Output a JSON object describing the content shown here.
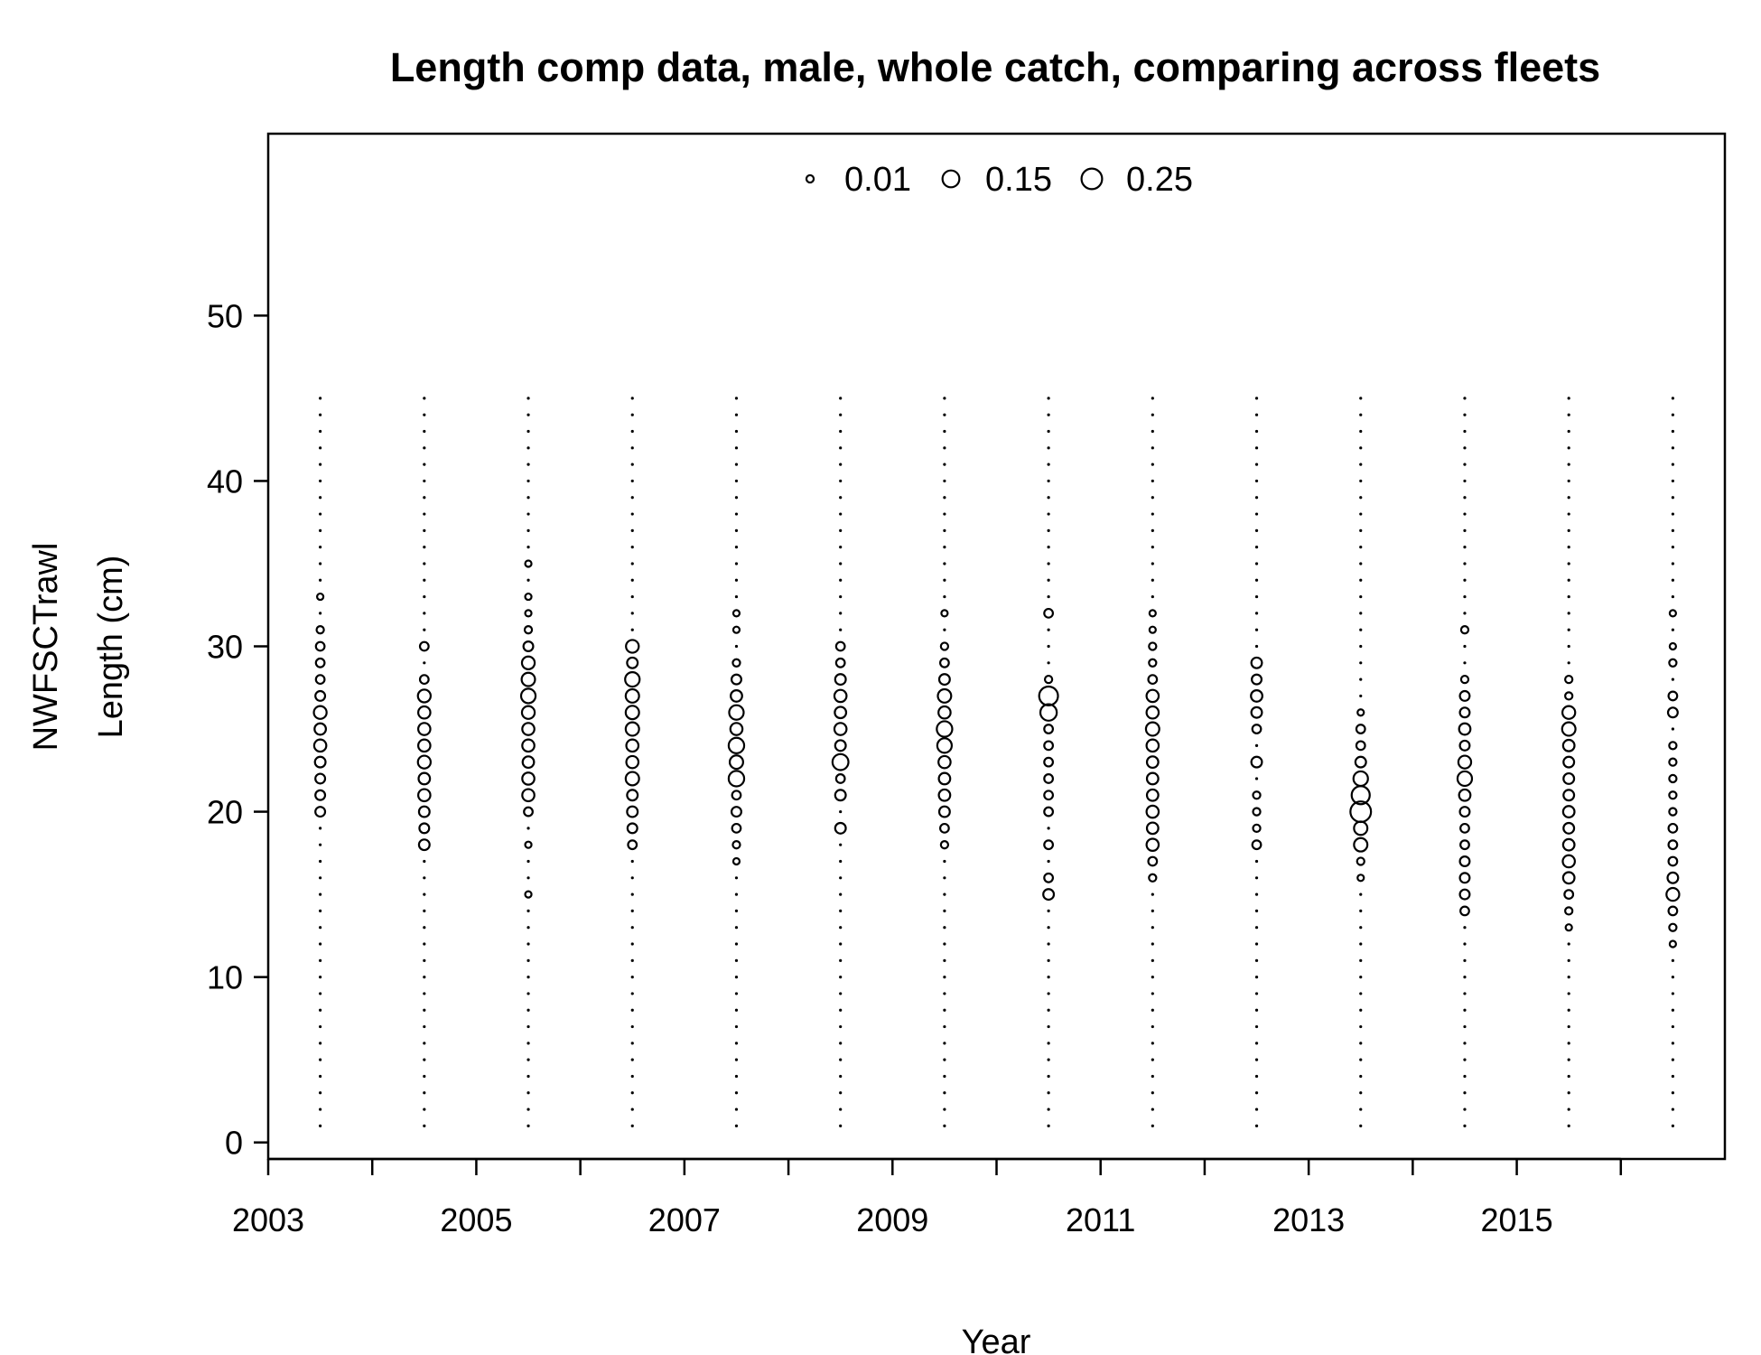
{
  "chart_data": {
    "type": "bubble",
    "title": "Length comp data, male, whole catch, comparing across fleets",
    "xlabel": "Year",
    "ylabel_fleet": "NWFSCTrawl",
    "ylabel": "Length (cm)",
    "xlim": [
      2003,
      2017
    ],
    "ylim": [
      -1,
      61
    ],
    "x_ticks": [
      2003,
      2004,
      2005,
      2006,
      2007,
      2008,
      2009,
      2010,
      2011,
      2012,
      2013,
      2014,
      2015,
      2016
    ],
    "x_tick_labels": [
      "2003",
      "2005",
      "2007",
      "2009",
      "2011",
      "2013",
      "2015"
    ],
    "y_ticks": [
      0,
      10,
      20,
      30,
      40,
      50
    ],
    "legend": {
      "placement": "top-center",
      "entries": [
        {
          "label": "0.01",
          "value": 0.01
        },
        {
          "label": "0.15",
          "value": 0.15
        },
        {
          "label": "0.25",
          "value": 0.25
        }
      ]
    },
    "length_bins": [
      1,
      45
    ],
    "years": [
      {
        "year": 2003.5,
        "props": {
          "20": 0.03,
          "21": 0.03,
          "22": 0.03,
          "23": 0.04,
          "24": 0.06,
          "25": 0.05,
          "26": 0.07,
          "27": 0.03,
          "28": 0.02,
          "29": 0.02,
          "30": 0.02,
          "31": 0.01,
          "33": 0.005
        }
      },
      {
        "year": 2004.5,
        "props": {
          "18": 0.04,
          "19": 0.03,
          "20": 0.04,
          "21": 0.06,
          "22": 0.05,
          "23": 0.07,
          "24": 0.06,
          "25": 0.06,
          "26": 0.06,
          "27": 0.07,
          "28": 0.02,
          "30": 0.02
        }
      },
      {
        "year": 2005.5,
        "props": {
          "15": 0.005,
          "18": 0.005,
          "20": 0.02,
          "21": 0.06,
          "22": 0.06,
          "23": 0.05,
          "24": 0.06,
          "25": 0.06,
          "26": 0.07,
          "27": 0.1,
          "28": 0.08,
          "29": 0.07,
          "30": 0.03,
          "31": 0.01,
          "32": 0.005,
          "33": 0.005,
          "35": 0.005
        }
      },
      {
        "year": 2006.5,
        "props": {
          "18": 0.02,
          "19": 0.03,
          "20": 0.04,
          "21": 0.04,
          "22": 0.08,
          "23": 0.06,
          "24": 0.06,
          "25": 0.08,
          "26": 0.08,
          "27": 0.08,
          "28": 0.1,
          "29": 0.04,
          "30": 0.07
        }
      },
      {
        "year": 2007.5,
        "props": {
          "17": 0.005,
          "18": 0.01,
          "19": 0.02,
          "20": 0.03,
          "21": 0.02,
          "22": 0.12,
          "23": 0.08,
          "24": 0.12,
          "25": 0.06,
          "26": 0.1,
          "27": 0.05,
          "28": 0.03,
          "29": 0.01,
          "31": 0.005,
          "32": 0.005
        }
      },
      {
        "year": 2008.5,
        "props": {
          "19": 0.04,
          "21": 0.04,
          "22": 0.02,
          "23": 0.13,
          "24": 0.04,
          "25": 0.06,
          "26": 0.05,
          "27": 0.06,
          "28": 0.04,
          "29": 0.02,
          "30": 0.02
        }
      },
      {
        "year": 2009.5,
        "props": {
          "18": 0.01,
          "19": 0.02,
          "20": 0.04,
          "21": 0.05,
          "22": 0.05,
          "23": 0.06,
          "24": 0.1,
          "25": 0.12,
          "26": 0.06,
          "27": 0.08,
          "28": 0.04,
          "29": 0.02,
          "30": 0.01,
          "32": 0.005
        }
      },
      {
        "year": 2010.5,
        "props": {
          "15": 0.04,
          "16": 0.02,
          "18": 0.02,
          "20": 0.02,
          "21": 0.02,
          "22": 0.02,
          "23": 0.02,
          "24": 0.02,
          "25": 0.02,
          "26": 0.14,
          "27": 0.2,
          "28": 0.01,
          "32": 0.02
        }
      },
      {
        "year": 2011.5,
        "props": {
          "16": 0.01,
          "17": 0.02,
          "18": 0.06,
          "19": 0.05,
          "20": 0.06,
          "21": 0.05,
          "22": 0.05,
          "23": 0.05,
          "24": 0.06,
          "25": 0.08,
          "26": 0.06,
          "27": 0.06,
          "28": 0.02,
          "29": 0.01,
          "30": 0.01,
          "31": 0.005,
          "32": 0.005
        }
      },
      {
        "year": 2012.5,
        "props": {
          "18": 0.02,
          "19": 0.01,
          "20": 0.01,
          "21": 0.01,
          "23": 0.04,
          "25": 0.02,
          "26": 0.04,
          "27": 0.05,
          "28": 0.03,
          "29": 0.04
        }
      },
      {
        "year": 2013.5,
        "props": {
          "16": 0.005,
          "17": 0.01,
          "18": 0.08,
          "19": 0.08,
          "20": 0.25,
          "21": 0.18,
          "22": 0.1,
          "23": 0.04,
          "24": 0.02,
          "25": 0.02,
          "26": 0.005
        }
      },
      {
        "year": 2014.5,
        "props": {
          "14": 0.02,
          "15": 0.03,
          "16": 0.03,
          "17": 0.03,
          "18": 0.02,
          "19": 0.02,
          "20": 0.03,
          "21": 0.05,
          "22": 0.1,
          "23": 0.07,
          "24": 0.03,
          "25": 0.05,
          "26": 0.03,
          "27": 0.03,
          "28": 0.01,
          "31": 0.01
        }
      },
      {
        "year": 2015.5,
        "props": {
          "13": 0.005,
          "14": 0.01,
          "15": 0.02,
          "16": 0.05,
          "17": 0.06,
          "18": 0.05,
          "19": 0.04,
          "20": 0.05,
          "21": 0.04,
          "22": 0.04,
          "23": 0.04,
          "24": 0.05,
          "25": 0.08,
          "26": 0.07,
          "27": 0.01,
          "28": 0.01
        }
      },
      {
        "year": 2016.5,
        "props": {
          "12": 0.005,
          "13": 0.01,
          "14": 0.02,
          "15": 0.07,
          "16": 0.04,
          "17": 0.02,
          "18": 0.02,
          "19": 0.02,
          "20": 0.01,
          "21": 0.01,
          "22": 0.01,
          "23": 0.01,
          "24": 0.01,
          "26": 0.03,
          "27": 0.02,
          "29": 0.01,
          "30": 0.005,
          "32": 0.005
        }
      }
    ]
  }
}
